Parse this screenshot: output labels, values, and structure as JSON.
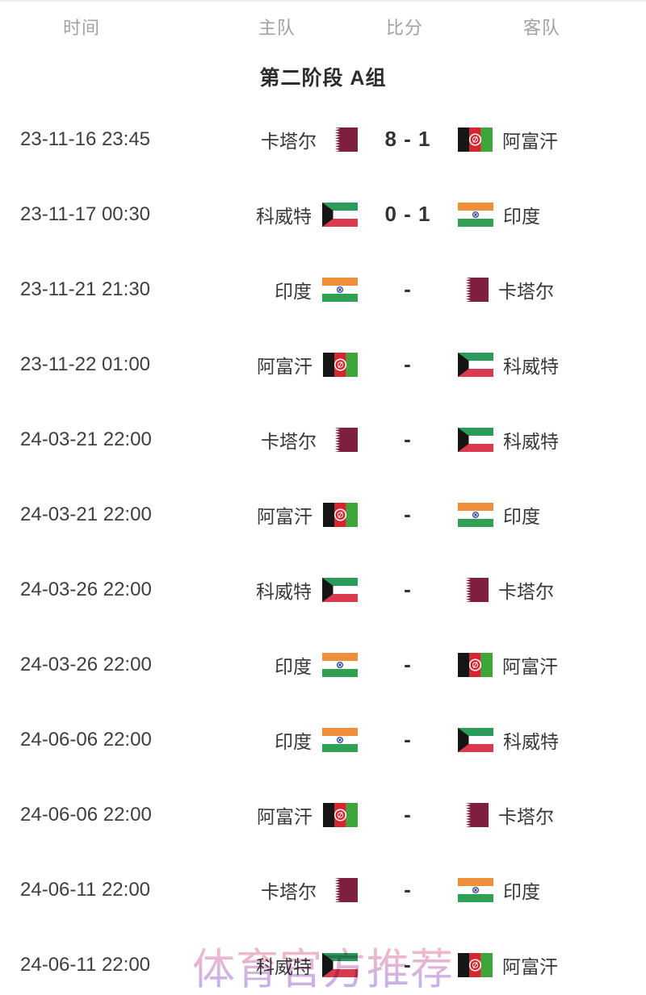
{
  "page": {
    "watermark_text": "体育官方推荐"
  },
  "table": {
    "headers": [
      "时间",
      "主队",
      "比分",
      "客队"
    ],
    "group_title": "第二阶段 A组"
  },
  "matches": [
    {
      "time": "23-11-16 23:45",
      "home": "卡塔尔",
      "home_flag": "qatar",
      "score": "8 - 1",
      "away": "阿富汗",
      "away_flag": "afghanistan"
    },
    {
      "time": "23-11-17 00:30",
      "home": "科威特",
      "home_flag": "kuwait",
      "score": "0 - 1",
      "away": "印度",
      "away_flag": "india"
    },
    {
      "time": "23-11-21 21:30",
      "home": "印度",
      "home_flag": "india",
      "score": "-",
      "away": "卡塔尔",
      "away_flag": "qatar"
    },
    {
      "time": "23-11-22 01:00",
      "home": "阿富汗",
      "home_flag": "afghanistan",
      "score": "-",
      "away": "科威特",
      "away_flag": "kuwait"
    },
    {
      "time": "24-03-21 22:00",
      "home": "卡塔尔",
      "home_flag": "qatar",
      "score": "-",
      "away": "科威特",
      "away_flag": "kuwait"
    },
    {
      "time": "24-03-21 22:00",
      "home": "阿富汗",
      "home_flag": "afghanistan",
      "score": "-",
      "away": "印度",
      "away_flag": "india"
    },
    {
      "time": "24-03-26 22:00",
      "home": "科威特",
      "home_flag": "kuwait",
      "score": "-",
      "away": "卡塔尔",
      "away_flag": "qatar"
    },
    {
      "time": "24-03-26 22:00",
      "home": "印度",
      "home_flag": "india",
      "score": "-",
      "away": "阿富汗",
      "away_flag": "afghanistan"
    },
    {
      "time": "24-06-06 22:00",
      "home": "印度",
      "home_flag": "india",
      "score": "-",
      "away": "科威特",
      "away_flag": "kuwait"
    },
    {
      "time": "24-06-06 22:00",
      "home": "阿富汗",
      "home_flag": "afghanistan",
      "score": "-",
      "away": "卡塔尔",
      "away_flag": "qatar"
    },
    {
      "time": "24-06-11 22:00",
      "home": "卡塔尔",
      "home_flag": "qatar",
      "score": "-",
      "away": "印度",
      "away_flag": "india"
    },
    {
      "time": "24-06-11 22:00",
      "home": "科威特",
      "home_flag": "kuwait",
      "score": "-",
      "away": "阿富汗",
      "away_flag": "afghanistan"
    }
  ],
  "colors": {
    "header_text": "#a2a2a2",
    "title_text": "#2d2d2d",
    "time_text": "#3e3e3e",
    "team_text": "#383838",
    "score_text": "#333333",
    "watermark_top": "#f4b2c1",
    "watermark_bottom": "#b5a6ee",
    "flag_qatar_maroon": "#7f1f40",
    "flag_afghanistan_black": "#161616",
    "flag_afghanistan_red": "#d6252e",
    "flag_afghanistan_green": "#3ea53a",
    "flag_kuwait_green": "#2a9b5a",
    "flag_kuwait_red": "#da3a4e",
    "flag_kuwait_black": "#141414",
    "flag_india_saffron": "#ef8f3a",
    "flag_india_green": "#31a052",
    "flag_india_navy": "#2b4093"
  }
}
